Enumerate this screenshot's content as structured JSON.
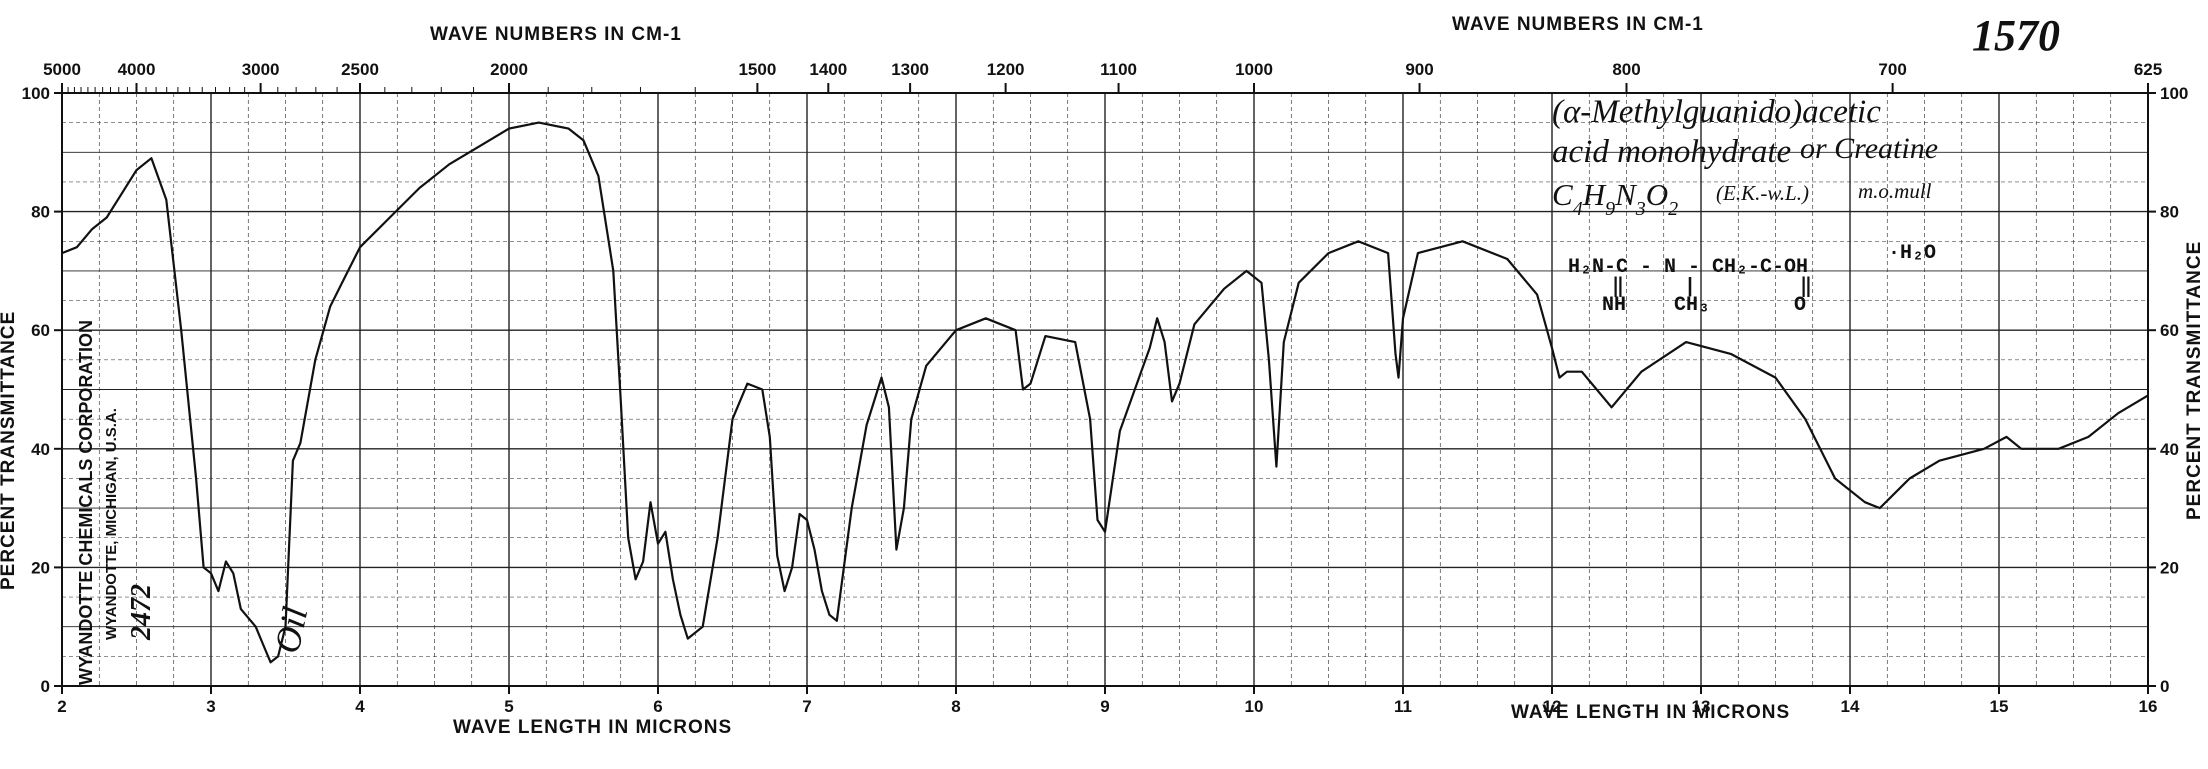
{
  "chart_data": {
    "type": "line",
    "title": "",
    "top_axis_label_left": "WAVE NUMBERS IN CM-1",
    "top_axis_label_right": "WAVE NUMBERS IN CM-1",
    "bottom_axis_label_left": "WAVE LENGTH IN MICRONS",
    "bottom_axis_label_right": "WAVE LENGTH IN MICRONS",
    "ylabel_left": "PERCENT TRANSMITTANCE",
    "ylabel_right": "PERCENT TRANSMITTANCE",
    "xlim": [
      2,
      16
    ],
    "ylim": [
      0,
      100
    ],
    "grid": true,
    "x_ticks": [
      "2",
      "3",
      "4",
      "5",
      "6",
      "7",
      "8",
      "9",
      "10",
      "11",
      "12",
      "13",
      "14",
      "15",
      "16"
    ],
    "left_y_ticks": [
      "0",
      "20",
      "40",
      "60",
      "80",
      "100"
    ],
    "right_y_ticks": [
      "0",
      "20",
      "40",
      "60",
      "80",
      "100"
    ],
    "top_ticks": [
      {
        "label": "5000",
        "micron": 2.0
      },
      {
        "label": "4000",
        "micron": 2.5
      },
      {
        "label": "3000",
        "micron": 3.333
      },
      {
        "label": "2500",
        "micron": 4.0
      },
      {
        "label": "2000",
        "micron": 5.0
      },
      {
        "label": "1500",
        "micron": 6.667
      },
      {
        "label": "1400",
        "micron": 7.143
      },
      {
        "label": "1300",
        "micron": 7.692
      },
      {
        "label": "1200",
        "micron": 8.333
      },
      {
        "label": "1100",
        "micron": 9.091
      },
      {
        "label": "1000",
        "micron": 10.0
      },
      {
        "label": "900",
        "micron": 11.111
      },
      {
        "label": "800",
        "micron": 12.5
      },
      {
        "label": "700",
        "micron": 14.286
      },
      {
        "label": "625",
        "micron": 16.0
      }
    ],
    "series": [
      {
        "color": "#111111",
        "points": [
          [
            2.0,
            73
          ],
          [
            2.1,
            74
          ],
          [
            2.2,
            77
          ],
          [
            2.3,
            79
          ],
          [
            2.4,
            83
          ],
          [
            2.5,
            87
          ],
          [
            2.6,
            89
          ],
          [
            2.7,
            82
          ],
          [
            2.8,
            60
          ],
          [
            2.9,
            35
          ],
          [
            2.95,
            20
          ],
          [
            3.0,
            19
          ],
          [
            3.05,
            16
          ],
          [
            3.1,
            21
          ],
          [
            3.15,
            19
          ],
          [
            3.2,
            13
          ],
          [
            3.3,
            10
          ],
          [
            3.35,
            7
          ],
          [
            3.4,
            4
          ],
          [
            3.45,
            5
          ],
          [
            3.5,
            10
          ],
          [
            3.55,
            38
          ],
          [
            3.6,
            41
          ],
          [
            3.7,
            55
          ],
          [
            3.8,
            64
          ],
          [
            3.9,
            69
          ],
          [
            4.0,
            74
          ],
          [
            4.2,
            79
          ],
          [
            4.4,
            84
          ],
          [
            4.6,
            88
          ],
          [
            4.8,
            91
          ],
          [
            5.0,
            94
          ],
          [
            5.2,
            95
          ],
          [
            5.4,
            94
          ],
          [
            5.5,
            92
          ],
          [
            5.6,
            86
          ],
          [
            5.7,
            70
          ],
          [
            5.75,
            48
          ],
          [
            5.8,
            25
          ],
          [
            5.85,
            18
          ],
          [
            5.9,
            21
          ],
          [
            5.95,
            31
          ],
          [
            6.0,
            24
          ],
          [
            6.05,
            26
          ],
          [
            6.1,
            18
          ],
          [
            6.15,
            12
          ],
          [
            6.2,
            8
          ],
          [
            6.3,
            10
          ],
          [
            6.4,
            25
          ],
          [
            6.5,
            45
          ],
          [
            6.6,
            51
          ],
          [
            6.7,
            50
          ],
          [
            6.75,
            42
          ],
          [
            6.8,
            22
          ],
          [
            6.85,
            16
          ],
          [
            6.9,
            20
          ],
          [
            6.95,
            29
          ],
          [
            7.0,
            28
          ],
          [
            7.05,
            23
          ],
          [
            7.1,
            16
          ],
          [
            7.15,
            12
          ],
          [
            7.2,
            11
          ],
          [
            7.3,
            30
          ],
          [
            7.4,
            44
          ],
          [
            7.5,
            52
          ],
          [
            7.55,
            47
          ],
          [
            7.6,
            23
          ],
          [
            7.65,
            30
          ],
          [
            7.7,
            45
          ],
          [
            7.8,
            54
          ],
          [
            8.0,
            60
          ],
          [
            8.2,
            62
          ],
          [
            8.4,
            60
          ],
          [
            8.45,
            50
          ],
          [
            8.5,
            51
          ],
          [
            8.6,
            59
          ],
          [
            8.8,
            58
          ],
          [
            8.9,
            45
          ],
          [
            8.95,
            28
          ],
          [
            9.0,
            26
          ],
          [
            9.1,
            43
          ],
          [
            9.3,
            57
          ],
          [
            9.35,
            62
          ],
          [
            9.4,
            58
          ],
          [
            9.45,
            48
          ],
          [
            9.5,
            51
          ],
          [
            9.6,
            61
          ],
          [
            9.8,
            67
          ],
          [
            9.95,
            70
          ],
          [
            10.05,
            68
          ],
          [
            10.1,
            55
          ],
          [
            10.15,
            37
          ],
          [
            10.2,
            58
          ],
          [
            10.3,
            68
          ],
          [
            10.5,
            73
          ],
          [
            10.7,
            75
          ],
          [
            10.9,
            73
          ],
          [
            10.95,
            56
          ],
          [
            10.97,
            52
          ],
          [
            11.0,
            62
          ],
          [
            11.1,
            73
          ],
          [
            11.4,
            75
          ],
          [
            11.7,
            72
          ],
          [
            11.9,
            66
          ],
          [
            12.0,
            57
          ],
          [
            12.05,
            52
          ],
          [
            12.1,
            53
          ],
          [
            12.2,
            53
          ],
          [
            12.4,
            47
          ],
          [
            12.6,
            53
          ],
          [
            12.9,
            58
          ],
          [
            13.2,
            56
          ],
          [
            13.5,
            52
          ],
          [
            13.7,
            45
          ],
          [
            13.9,
            35
          ],
          [
            14.1,
            31
          ],
          [
            14.2,
            30
          ],
          [
            14.4,
            35
          ],
          [
            14.6,
            38
          ],
          [
            14.9,
            40
          ],
          [
            15.05,
            42
          ],
          [
            15.15,
            40
          ],
          [
            15.4,
            40
          ],
          [
            15.6,
            42
          ],
          [
            15.8,
            46
          ],
          [
            16.0,
            49
          ]
        ]
      }
    ],
    "annotations": {
      "corner_number": "1570",
      "compound_line1": "(α-Methylguanido)acetic",
      "compound_line2": "acid monohydrate",
      "compound_alt": "or Creatine",
      "formula_c": "C",
      "formula_c_sub": "4",
      "formula_h": "H",
      "formula_h_sub": "9",
      "formula_n": "N",
      "formula_n_sub": "3",
      "formula_o": "O",
      "formula_o_sub": "2",
      "formula_source": "(E.K.-w.L.)",
      "formula_method": "m.o.mull",
      "struct_top": "H₂N-C - N - CH₂-C-OH",
      "struct_mid_left": "‖",
      "struct_mid_n": "|",
      "struct_mid_right": "‖",
      "struct_bottom_left": "NH",
      "struct_bottom_n": "CH₃",
      "struct_bottom_right": "O",
      "struct_water": "·H₂O",
      "oil_label": "Oil",
      "company": "WYANDOTTE CHEMICALS CORPORATION",
      "company_place": "WYANDOTTE, MICHIGAN, U.S.A.",
      "sample_number": "2472"
    }
  }
}
